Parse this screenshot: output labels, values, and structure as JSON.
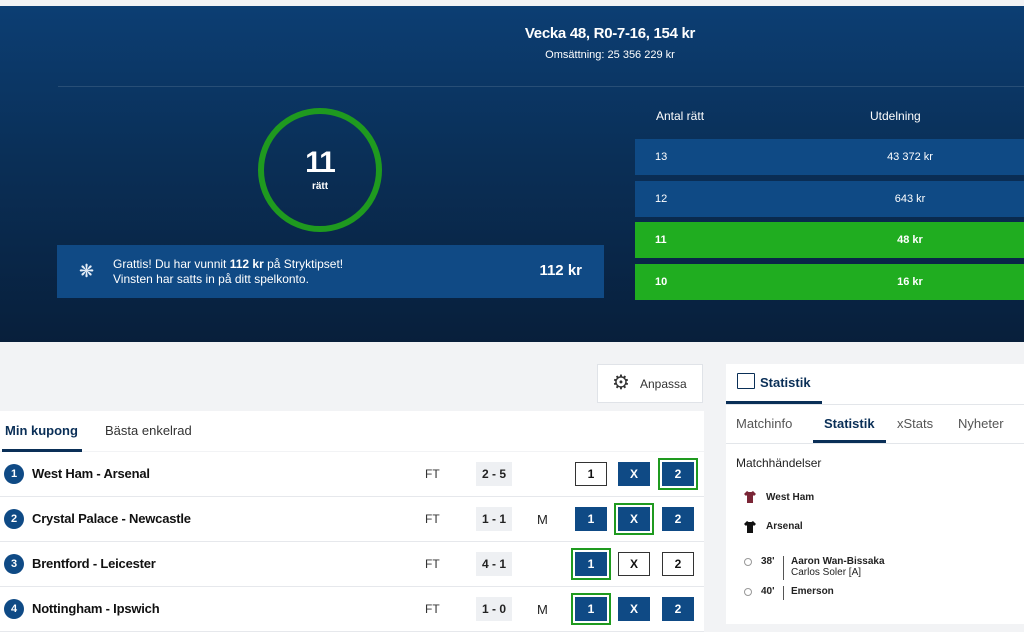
{
  "header": {
    "title": "Vecka 48, R0-7-16, 154 kr",
    "turnover": "Omsättning: 25 356 229 kr"
  },
  "result": {
    "correct_number": "11",
    "correct_label": "rätt",
    "win_line1_pre": "Grattis! Du har vunnit ",
    "win_line1_amount": "112 kr",
    "win_line1_post": " på Stryktipset!",
    "win_line2": "Vinsten har satts in på ditt spelkonto.",
    "win_amount": "112 kr"
  },
  "payout": {
    "col_correct": "Antal rätt",
    "col_payout": "Utdelning",
    "rows": [
      {
        "correct": "13",
        "payout": "43 372 kr",
        "won": false
      },
      {
        "correct": "12",
        "payout": "643 kr",
        "won": false
      },
      {
        "correct": "11",
        "payout": "48 kr",
        "won": true
      },
      {
        "correct": "10",
        "payout": "16 kr",
        "won": true
      }
    ]
  },
  "toolbar": {
    "customize_label": "Anpassa"
  },
  "coupon_tabs": [
    "Min kupong",
    "Bästa enkelrad"
  ],
  "matches": [
    {
      "num": "1",
      "name": "West Ham - Arsenal",
      "status": "FT",
      "score": "2 - 5",
      "mark": "",
      "picks": [
        "1",
        "X",
        "2"
      ],
      "selected": [
        false,
        true,
        true
      ],
      "correct": [
        false,
        false,
        true
      ]
    },
    {
      "num": "2",
      "name": "Crystal Palace - Newcastle",
      "status": "FT",
      "score": "1 - 1",
      "mark": "M",
      "picks": [
        "1",
        "X",
        "2"
      ],
      "selected": [
        true,
        true,
        true
      ],
      "correct": [
        false,
        true,
        false
      ]
    },
    {
      "num": "3",
      "name": "Brentford - Leicester",
      "status": "FT",
      "score": "4 - 1",
      "mark": "",
      "picks": [
        "1",
        "X",
        "2"
      ],
      "selected": [
        true,
        false,
        false
      ],
      "correct": [
        true,
        false,
        false
      ]
    },
    {
      "num": "4",
      "name": "Nottingham - Ipswich",
      "status": "FT",
      "score": "1 - 0",
      "mark": "M",
      "picks": [
        "1",
        "X",
        "2"
      ],
      "selected": [
        true,
        true,
        true
      ],
      "correct": [
        true,
        false,
        false
      ]
    }
  ],
  "stats_panel": {
    "title": "Statistik",
    "tabs": [
      "Matchinfo",
      "Statistik",
      "xStats",
      "Nyheter"
    ],
    "section_title": "Matchhändelser",
    "teams": [
      {
        "name": "West Ham",
        "color": "#7a2636"
      },
      {
        "name": "Arsenal",
        "color": "#111111"
      }
    ],
    "events": [
      {
        "minute": "38'",
        "player": "Aaron Wan-Bissaka",
        "assist": "Carlos Soler [A]"
      },
      {
        "minute": "40'",
        "player": "Emerson",
        "assist": ""
      }
    ]
  },
  "colors": {
    "navy": "#0f4a85",
    "green": "#1f9a1f",
    "green_row": "#20ad20"
  }
}
